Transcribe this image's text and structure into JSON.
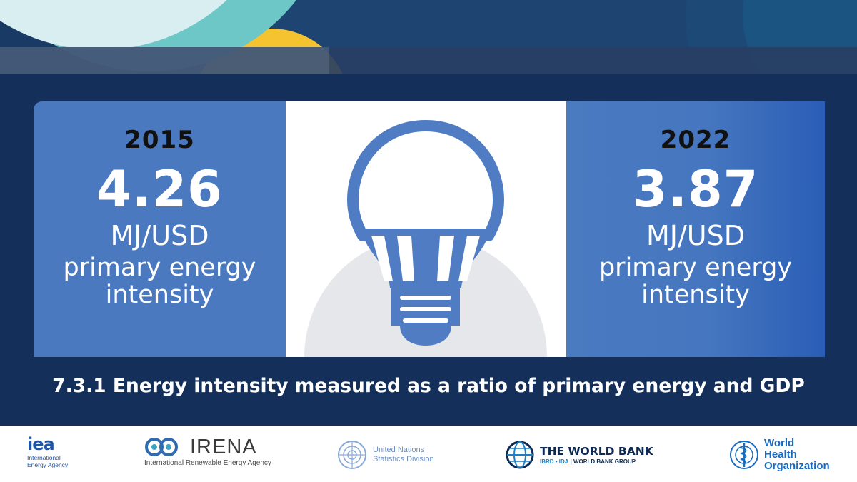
{
  "colors": {
    "banner_navy": "#1a3a66",
    "panel_navy": "#14305a",
    "card_blue": "#4a79c0",
    "bulb_blue": "#4f7cc2",
    "accent_yellow": "#f5c230",
    "accent_teal": "#6cc7c6"
  },
  "stats": {
    "before": {
      "year": "2015",
      "value": "4.26",
      "unit": "MJ/USD",
      "description": "primary energy intensity"
    },
    "after": {
      "year": "2022",
      "value": "3.87",
      "unit": "MJ/USD",
      "description": "primary energy intensity"
    }
  },
  "icon": "lightbulb-icon",
  "caption": "7.3.1 Energy intensity measured as a ratio of primary energy and GDP",
  "logos": {
    "iea": {
      "mark": "iea",
      "subtitle": "International Energy Agency"
    },
    "irena": {
      "mark": "IRENA",
      "subtitle": "International Renewable Energy Agency"
    },
    "un": {
      "text": "United Nations Statistics Division"
    },
    "world_bank": {
      "mark": "THE WORLD BANK",
      "sub_accent": "IBRD • IDA",
      "sub_rest": "| WORLD BANK GROUP"
    },
    "who": {
      "text": "World Health Organization"
    }
  }
}
